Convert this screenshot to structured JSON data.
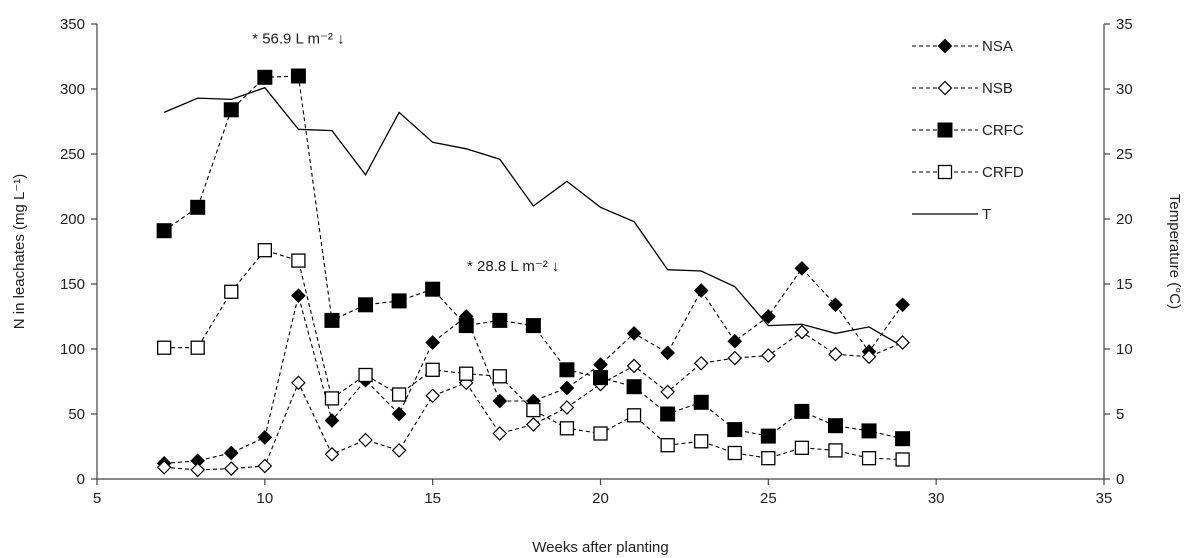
{
  "chart_data": {
    "type": "line",
    "xlabel": "Weeks after planting",
    "ylabel": "N in leachates (mg L⁻¹)",
    "y2label": "Temperature (°C)",
    "xlim": [
      5,
      35
    ],
    "ylim": [
      0,
      350
    ],
    "y2lim": [
      0,
      35
    ],
    "xticks": [
      "5",
      "10",
      "15",
      "20",
      "25",
      "30",
      "35"
    ],
    "yticks": [
      "0",
      "50",
      "100",
      "150",
      "200",
      "250",
      "300",
      "350"
    ],
    "y2ticks": [
      "0",
      "5",
      "10",
      "15",
      "20",
      "25",
      "30",
      "35"
    ],
    "grid": false,
    "legend_position": "top-right",
    "annotations": [
      {
        "text": "* 56.9 L m⁻² ↓",
        "x": 11,
        "y": 335
      },
      {
        "text": "* 28.8 L m⁻² ↓",
        "x": 17.4,
        "y": 160
      }
    ],
    "x": [
      7,
      8,
      9,
      10,
      11,
      12,
      13,
      14,
      15,
      16,
      17,
      18,
      19,
      20,
      21,
      22,
      23,
      24,
      25,
      26,
      27,
      28,
      29
    ],
    "series": [
      {
        "name": "NSA",
        "axis": "left",
        "marker": "filled-diamond",
        "line": "dashed",
        "color": "#000000",
        "values": [
          12,
          14,
          20,
          32,
          141,
          45,
          76,
          50,
          105,
          125,
          60,
          60,
          70,
          88,
          112,
          97,
          145,
          106,
          125,
          162,
          134,
          98,
          134
        ]
      },
      {
        "name": "NSB",
        "axis": "left",
        "marker": "open-diamond",
        "line": "dashed",
        "color": "#000000",
        "values": [
          9,
          7,
          8,
          10,
          74,
          19,
          30,
          22,
          64,
          74,
          35,
          42,
          55,
          73,
          87,
          67,
          89,
          93,
          95,
          113,
          96,
          94,
          105
        ]
      },
      {
        "name": "CRFC",
        "axis": "left",
        "marker": "filled-square",
        "line": "dashed",
        "color": "#000000",
        "values": [
          191,
          209,
          284,
          309,
          310,
          122,
          134,
          137,
          146,
          118,
          122,
          118,
          84,
          78,
          71,
          50,
          59,
          38,
          33,
          52,
          41,
          37,
          31
        ]
      },
      {
        "name": "CRFD",
        "axis": "left",
        "marker": "open-square",
        "line": "dashed",
        "color": "#000000",
        "values": [
          101,
          101,
          144,
          176,
          168,
          62,
          80,
          65,
          84,
          81,
          79,
          53,
          39,
          35,
          49,
          26,
          29,
          20,
          16,
          24,
          22,
          16,
          15
        ]
      },
      {
        "name": "T",
        "axis": "right",
        "marker": "none",
        "line": "solid",
        "color": "#000000",
        "values": [
          28.2,
          29.3,
          29.2,
          30.1,
          26.9,
          26.8,
          23.4,
          28.2,
          25.9,
          25.4,
          24.6,
          21.0,
          22.9,
          20.9,
          19.8,
          16.1,
          16.0,
          14.8,
          11.8,
          11.9,
          11.2,
          11.7,
          10.2
        ]
      }
    ]
  }
}
